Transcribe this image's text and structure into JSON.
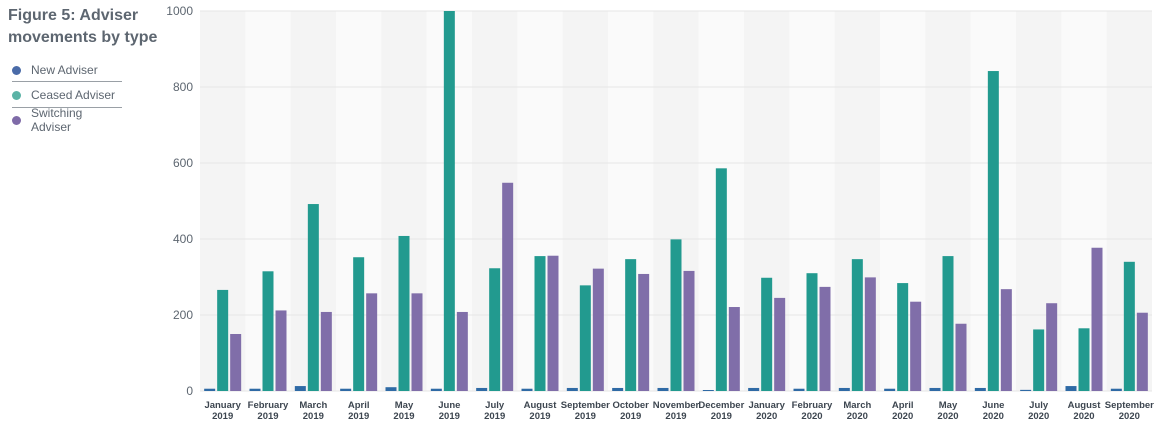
{
  "title": "Figure 5: Adviser movements by type",
  "legend": [
    {
      "label": "New Adviser",
      "color": "#4a6ba8"
    },
    {
      "label": "Ceased Adviser",
      "color": "#5bb3a6"
    },
    {
      "label": "Switching Adviser",
      "color": "#7f6ba8"
    }
  ],
  "colors": {
    "new": "#2f6aa5",
    "ceased": "#229a8f",
    "switching": "#806ea9"
  },
  "chart_data": {
    "type": "bar",
    "title": "Figure 5: Adviser movements by type",
    "xlabel": "",
    "ylabel": "",
    "ylim": [
      0,
      1000
    ],
    "yticks": [
      0,
      200,
      400,
      600,
      800,
      1000
    ],
    "grid": true,
    "legend_position": "left",
    "categories": [
      [
        "January",
        "2019"
      ],
      [
        "February",
        "2019"
      ],
      [
        "March",
        "2019"
      ],
      [
        "April",
        "2019"
      ],
      [
        "May",
        "2019"
      ],
      [
        "June",
        "2019"
      ],
      [
        "July",
        "2019"
      ],
      [
        "August",
        "2019"
      ],
      [
        "September",
        "2019"
      ],
      [
        "October",
        "2019"
      ],
      [
        "November",
        "2019"
      ],
      [
        "December",
        "2019"
      ],
      [
        "January",
        "2020"
      ],
      [
        "February",
        "2020"
      ],
      [
        "March",
        "2020"
      ],
      [
        "April",
        "2020"
      ],
      [
        "May",
        "2020"
      ],
      [
        "June",
        "2020"
      ],
      [
        "July",
        "2020"
      ],
      [
        "August",
        "2020"
      ],
      [
        "September",
        "2020"
      ]
    ],
    "series": [
      {
        "name": "New Adviser",
        "values": [
          6,
          6,
          13,
          6,
          10,
          6,
          8,
          6,
          8,
          8,
          8,
          2,
          8,
          6,
          8,
          6,
          8,
          8,
          3,
          13,
          6
        ]
      },
      {
        "name": "Ceased Adviser",
        "values": [
          266,
          315,
          492,
          352,
          408,
          1000,
          323,
          355,
          278,
          347,
          399,
          586,
          298,
          310,
          347,
          284,
          355,
          842,
          162,
          165,
          340
        ]
      },
      {
        "name": "Switching Adviser",
        "values": [
          150,
          212,
          208,
          257,
          257,
          208,
          548,
          356,
          322,
          308,
          316,
          221,
          245,
          274,
          299,
          235,
          177,
          268,
          231,
          377,
          206
        ]
      }
    ]
  }
}
